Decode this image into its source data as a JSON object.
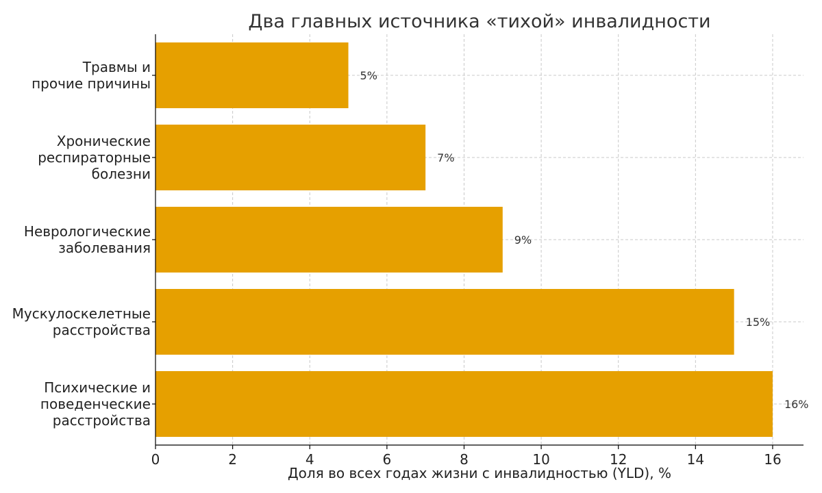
{
  "chart_data": {
    "type": "bar",
    "orientation": "horizontal",
    "title": "Два главных источника «тихой» инвалидности",
    "xlabel": "Доля во всех годах жизни с инвалидностью (YLD), %",
    "ylabel": "",
    "xlim": [
      0,
      16.8
    ],
    "xticks": [
      0,
      2,
      4,
      6,
      8,
      10,
      12,
      14,
      16
    ],
    "grid": true,
    "bar_color": "#E6A000",
    "categories": [
      [
        "Травмы и",
        "прочие причины"
      ],
      [
        "Хронические",
        "респираторные",
        "болезни"
      ],
      [
        "Неврологические",
        "заболевания"
      ],
      [
        "Мускулоскелетные",
        "расстройства"
      ],
      [
        "Психические и",
        "поведенческие",
        "расстройства"
      ]
    ],
    "values": [
      5,
      7,
      9,
      15,
      16
    ],
    "value_labels": [
      "5%",
      "7%",
      "9%",
      "15%",
      "16%"
    ]
  }
}
